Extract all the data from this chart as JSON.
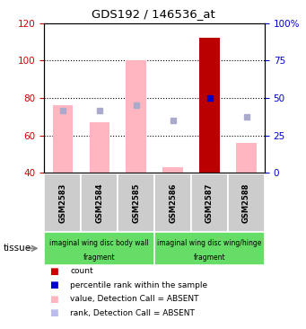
{
  "title": "GDS192 / 146536_at",
  "samples": [
    "GSM2583",
    "GSM2584",
    "GSM2585",
    "GSM2586",
    "GSM2587",
    "GSM2588"
  ],
  "bar_values_pink": [
    76,
    67,
    100,
    43,
    112,
    56
  ],
  "bar_bottom": 40,
  "rank_dots_blue_light": [
    73,
    73,
    76,
    68,
    null,
    70
  ],
  "rank_dots_blue_dark": [
    null,
    null,
    null,
    null,
    80,
    null
  ],
  "ylim": [
    40,
    120
  ],
  "yticks_left": [
    40,
    60,
    80,
    100,
    120
  ],
  "tissue_color": "#66dd66",
  "legend_items": [
    {
      "color": "#cc0000",
      "label": "count"
    },
    {
      "color": "#0000cc",
      "label": "percentile rank within the sample"
    },
    {
      "color": "#FFB6C1",
      "label": "value, Detection Call = ABSENT"
    },
    {
      "color": "#bbbbee",
      "label": "rank, Detection Call = ABSENT"
    }
  ],
  "bar_color_pink": "#FFB6C1",
  "bar_color_red": "#bb0000",
  "dot_color_blue_dark": "#0000cc",
  "dot_color_blue_light": "#aaaacc",
  "ylabel_left_color": "#cc0000",
  "ylabel_right_color": "#0000cc",
  "tick_area_color": "#cccccc",
  "group1_text1": "imaginal wing disc body wall",
  "group1_text2": "fragment",
  "group2_text1": "imaginal wing disc wing/hinge",
  "group2_text2": "fragment",
  "tissue_label": "tissue"
}
